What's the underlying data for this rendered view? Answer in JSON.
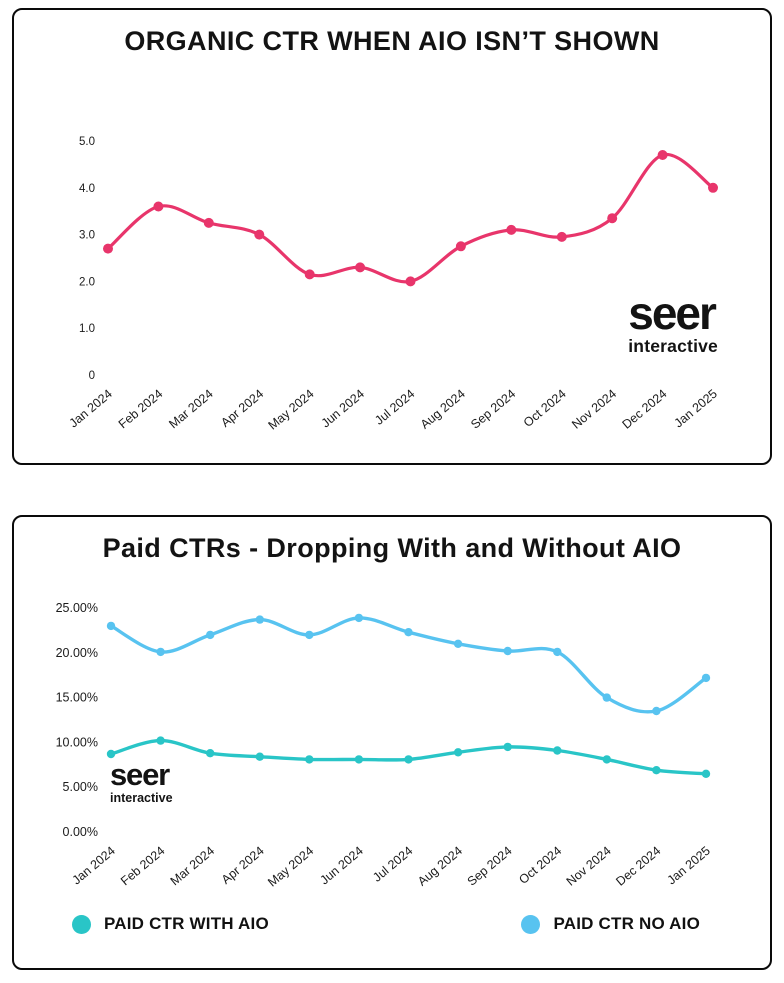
{
  "brand": {
    "name": "seer",
    "sub": "interactive"
  },
  "colors": {
    "organic_line": "#e8356b",
    "paid_with_aio": "#29c5c7",
    "paid_no_aio": "#58c3f0",
    "title_text": "#131313",
    "card_border": "#0a0a0a"
  },
  "chart_data": [
    {
      "type": "line",
      "title": "ORGANIC CTR WHEN AIO ISN’T SHOWN",
      "categories": [
        "Jan 2024",
        "Feb 2024",
        "Mar 2024",
        "Apr 2024",
        "May 2024",
        "Jun 2024",
        "Jul 2024",
        "Aug 2024",
        "Sep 2024",
        "Oct 2024",
        "Nov 2024",
        "Dec 2024",
        "Jan 2025"
      ],
      "series": [
        {
          "name": "Organic CTR",
          "color": "#e8356b",
          "values": [
            2.7,
            3.6,
            3.25,
            3.0,
            2.15,
            2.3,
            2.0,
            2.75,
            3.1,
            2.95,
            3.35,
            4.7,
            4.0
          ]
        }
      ],
      "ylim": [
        0,
        5
      ],
      "ytick_step": 1,
      "ytick_labels": [
        "0",
        "1.0",
        "2.0",
        "3.0",
        "4.0",
        "5.0"
      ],
      "grid": false,
      "legend_position": "none"
    },
    {
      "type": "line",
      "title": "Paid CTRs - Dropping With and Without AIO",
      "categories": [
        "Jan 2024",
        "Feb 2024",
        "Mar 2024",
        "Apr 2024",
        "May 2024",
        "Jun 2024",
        "Jul 2024",
        "Aug 2024",
        "Sep 2024",
        "Oct 2024",
        "Nov 2024",
        "Dec 2024",
        "Jan 2025"
      ],
      "series": [
        {
          "name": "PAID CTR WITH AIO",
          "color": "#29c5c7",
          "values": [
            8.7,
            10.2,
            8.8,
            8.4,
            8.1,
            8.1,
            8.1,
            8.9,
            9.5,
            9.1,
            8.1,
            6.9,
            6.5
          ]
        },
        {
          "name": "PAID CTR NO AIO",
          "color": "#58c3f0",
          "values": [
            23.0,
            20.1,
            22.0,
            23.7,
            22.0,
            23.9,
            22.3,
            21.0,
            20.2,
            20.1,
            15.0,
            13.5,
            17.2
          ]
        }
      ],
      "ylim": [
        0,
        25
      ],
      "ytick_step": 5,
      "ytick_labels": [
        "0.00%",
        "5.00%",
        "10.00%",
        "15.00%",
        "20.00%",
        "25.00%"
      ],
      "grid": false,
      "legend_position": "bottom"
    }
  ]
}
